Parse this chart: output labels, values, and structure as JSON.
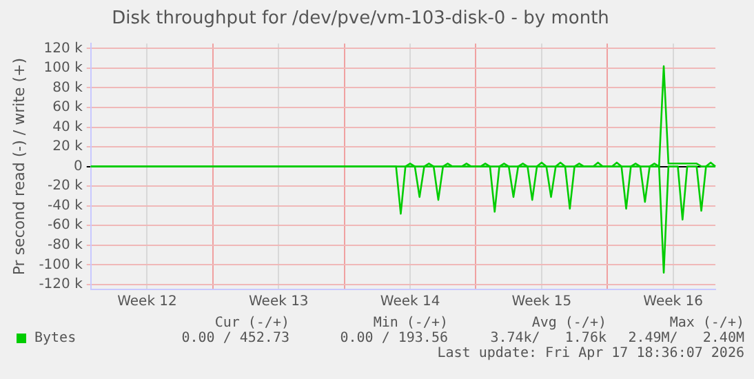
{
  "chart_data": {
    "type": "line",
    "title": "Disk throughput for /dev/pve/vm-103-disk-0 - by month",
    "ylabel": "Pr second read (-) / write (+)",
    "categories": [
      null,
      null,
      null,
      null,
      null,
      null,
      null,
      null,
      null,
      null,
      null,
      null,
      "Week 12",
      null,
      null,
      null,
      null,
      null,
      null,
      null,
      null,
      null,
      null,
      null,
      null,
      null,
      null,
      null,
      null,
      null,
      null,
      null,
      null,
      null,
      null,
      null,
      null,
      null,
      null,
      null,
      "Week 13",
      null,
      null,
      null,
      null,
      null,
      null,
      null,
      null,
      null,
      null,
      null,
      null,
      null,
      null,
      null,
      null,
      null,
      null,
      null,
      null,
      null,
      null,
      null,
      null,
      null,
      null,
      null,
      "Week 14",
      null,
      null,
      null,
      null,
      null,
      null,
      null,
      null,
      null,
      null,
      null,
      null,
      null,
      null,
      null,
      null,
      null,
      null,
      null,
      null,
      null,
      null,
      null,
      null,
      null,
      null,
      null,
      "Week 15",
      null,
      null,
      null,
      null,
      null,
      null,
      null,
      null,
      null,
      null,
      null,
      null,
      null,
      null,
      null,
      null,
      null,
      null,
      null,
      null,
      null,
      null,
      null,
      null,
      null,
      null,
      null,
      "Week 16",
      null,
      null,
      null,
      null,
      null,
      null,
      null,
      null,
      null
    ],
    "ylim": [
      -125000,
      125000
    ],
    "yticks": [
      {
        "value": -120000,
        "label": "-120 k"
      },
      {
        "value": -100000,
        "label": "-100 k"
      },
      {
        "value": -80000,
        "label": "-80 k"
      },
      {
        "value": -60000,
        "label": "-60 k"
      },
      {
        "value": -40000,
        "label": "-40 k"
      },
      {
        "value": -20000,
        "label": "-20 k"
      },
      0,
      {
        "value": 20000,
        "label": "20 k"
      },
      {
        "value": 40000,
        "label": "40 k"
      },
      {
        "value": 60000,
        "label": "60 k"
      },
      {
        "value": 80000,
        "label": "80 k"
      },
      {
        "value": 100000,
        "label": "100 k"
      },
      {
        "value": 120000,
        "label": "120 k"
      }
    ],
    "grid": true,
    "legend": "bottom left",
    "marker": "none",
    "line_style": "solid",
    "series": [
      {
        "color": "#00cc00",
        "values": [
          0,
          0,
          0,
          0,
          0,
          0,
          0,
          0,
          0,
          0,
          0,
          0,
          0,
          0,
          0,
          0,
          0,
          0,
          0,
          0,
          0,
          0,
          0,
          0,
          0,
          0,
          0,
          0,
          0,
          0,
          0,
          0,
          0,
          0,
          0,
          0,
          0,
          0,
          0,
          0,
          0,
          0,
          0,
          0,
          0,
          0,
          0,
          0,
          0,
          0,
          0,
          0,
          0,
          0,
          0,
          0,
          0,
          0,
          0,
          0,
          0,
          0,
          0,
          0,
          0,
          0,
          -48000,
          0,
          0,
          0,
          -31000,
          0,
          0,
          0,
          -34000,
          0,
          0,
          0,
          0,
          0,
          0,
          0,
          0,
          0,
          0,
          0,
          -46000,
          0,
          0,
          0,
          -31000,
          0,
          0,
          0,
          -34000,
          0,
          0,
          0,
          -31000,
          0,
          0,
          0,
          -43000,
          0,
          0,
          0,
          0,
          0,
          0,
          0,
          0,
          0,
          0,
          0,
          -43000,
          0,
          0,
          0,
          -36000,
          0,
          0,
          0,
          -108000,
          0,
          0,
          0,
          -54000,
          0,
          0,
          0,
          -45000,
          0,
          0,
          0
        ]
      },
      {
        "name": "Bytes",
        "color": "#00cc00",
        "values": [
          0,
          0,
          0,
          0,
          0,
          0,
          0,
          0,
          0,
          0,
          0,
          0,
          0,
          0,
          0,
          0,
          0,
          0,
          0,
          0,
          0,
          0,
          0,
          0,
          0,
          0,
          0,
          0,
          0,
          0,
          0,
          0,
          0,
          0,
          0,
          0,
          0,
          0,
          0,
          0,
          0,
          0,
          0,
          0,
          0,
          0,
          0,
          0,
          0,
          0,
          0,
          0,
          0,
          0,
          0,
          0,
          0,
          0,
          0,
          0,
          0,
          0,
          0,
          0,
          0,
          0,
          0,
          0,
          3000,
          0,
          0,
          0,
          3000,
          0,
          0,
          0,
          3000,
          0,
          0,
          0,
          3000,
          0,
          0,
          0,
          3000,
          0,
          0,
          0,
          3000,
          0,
          0,
          0,
          3000,
          0,
          0,
          0,
          4000,
          0,
          0,
          0,
          4000,
          0,
          0,
          0,
          3000,
          0,
          0,
          0,
          4000,
          0,
          0,
          0,
          4000,
          0,
          0,
          0,
          3000,
          0,
          0,
          0,
          3000,
          0,
          102000,
          3000,
          3000,
          3000,
          3000,
          3000,
          3000,
          3000,
          0,
          0,
          4000,
          0
        ]
      }
    ],
    "annotations": [
      "Cur (-/+)",
      "Min (-/+)",
      "Avg (-/+)",
      "Max (-/+)",
      "0.00 / 452.73",
      "0.00 / 193.56",
      "3.74k/   1.76k",
      "2.49M/   2.40M",
      "Last update: Fri Apr 17 18:36:07 2026"
    ]
  }
}
